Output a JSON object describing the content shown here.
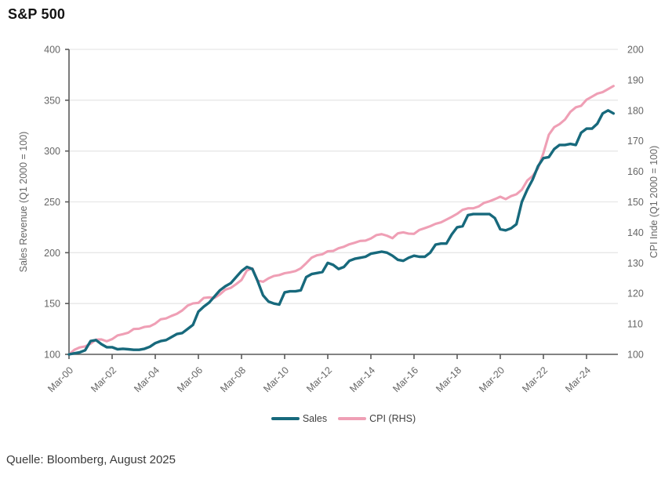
{
  "header": {
    "title": "S&P 500"
  },
  "footer": {
    "source": "Quelle: Bloomberg, August 2025"
  },
  "chart_data": {
    "type": "line",
    "title": "S&P 500",
    "x_unit": "quarterly, Q1 2000 through Q2 2025",
    "x_axis": {
      "tick_labels": [
        "Mar-00",
        "Mar-02",
        "Mar-04",
        "Mar-06",
        "Mar-08",
        "Mar-10",
        "Mar-12",
        "Mar-14",
        "Mar-16",
        "Mar-18",
        "Mar-20",
        "Mar-22",
        "Mar-24"
      ]
    },
    "left_axis": {
      "title": "Sales Revenue (Q1 2000 = 100)",
      "min": 100,
      "max": 400,
      "step": 50,
      "ticks": [
        100,
        150,
        200,
        250,
        300,
        350,
        400
      ]
    },
    "right_axis": {
      "title": "CPI Inde (Q1 2000 = 100)",
      "min": 100,
      "max": 200,
      "step": 10,
      "ticks": [
        100,
        110,
        120,
        130,
        140,
        150,
        160,
        170,
        180,
        190,
        200
      ]
    },
    "grid": "horizontal",
    "legend_position": "bottom-center",
    "colors": {
      "sales": "#17697c",
      "cpi": "#ef9fb5",
      "gridline": "#e7e7e7",
      "axis": "#5a5a5a",
      "tick_text": "#666666"
    },
    "series": [
      {
        "name": "Sales",
        "axis": "left",
        "color": "#17697c",
        "values": [
          100,
          101,
          102,
          104,
          113,
          114,
          110,
          107,
          107,
          105,
          105.5,
          105,
          104.5,
          104.5,
          105.5,
          107.5,
          111,
          113,
          114,
          117,
          120,
          121,
          125,
          129,
          142,
          147,
          151,
          157,
          163,
          167,
          170,
          176,
          182,
          186,
          184,
          172,
          158,
          152,
          150,
          149,
          161,
          162,
          162,
          163,
          176,
          179,
          180,
          181,
          190,
          188,
          184,
          186,
          192,
          194,
          195,
          196,
          199,
          200,
          201,
          200,
          197,
          193,
          192,
          195,
          197,
          196,
          196,
          200,
          208,
          209,
          209,
          218,
          225,
          226,
          237,
          238,
          238,
          238,
          238,
          234,
          223,
          222,
          224,
          228,
          250,
          262,
          272,
          285,
          293,
          294,
          302,
          306,
          306,
          307,
          306,
          318,
          322,
          322,
          327,
          337,
          340,
          337
        ]
      },
      {
        "name": "CPI (RHS)",
        "axis": "right",
        "color": "#ef9fb5",
        "values": [
          100,
          101.5,
          102.3,
          102.6,
          103.5,
          104.8,
          104.9,
          104.3,
          105,
          106.2,
          106.6,
          107.1,
          108.3,
          108.4,
          109,
          109.2,
          110.1,
          111.5,
          111.8,
          112.6,
          113.3,
          114.4,
          116,
          116.7,
          116.9,
          118.5,
          118.7,
          118.5,
          119.7,
          121.2,
          121.8,
          123,
          124.4,
          127.5,
          128.2,
          124.2,
          123.8,
          124.9,
          125.7,
          126,
          126.6,
          126.9,
          127.3,
          128.2,
          129.9,
          131.7,
          132.5,
          132.8,
          133.8,
          133.9,
          134.8,
          135.3,
          136.1,
          136.6,
          137.2,
          137.3,
          138,
          139.1,
          139.4,
          138.9,
          138.1,
          139.7,
          140,
          139.6,
          139.5,
          140.8,
          141.4,
          142,
          142.8,
          143.3,
          144.2,
          145.1,
          146.1,
          147.4,
          147.9,
          147.9,
          148.5,
          149.7,
          150.2,
          150.9,
          151.7,
          150.9,
          151.9,
          152.5,
          154,
          157,
          158.5,
          161,
          166,
          172,
          174.5,
          175.5,
          177,
          179.5,
          181,
          181.5,
          183.5,
          184.5,
          185.5,
          186,
          187,
          188
        ]
      }
    ]
  }
}
